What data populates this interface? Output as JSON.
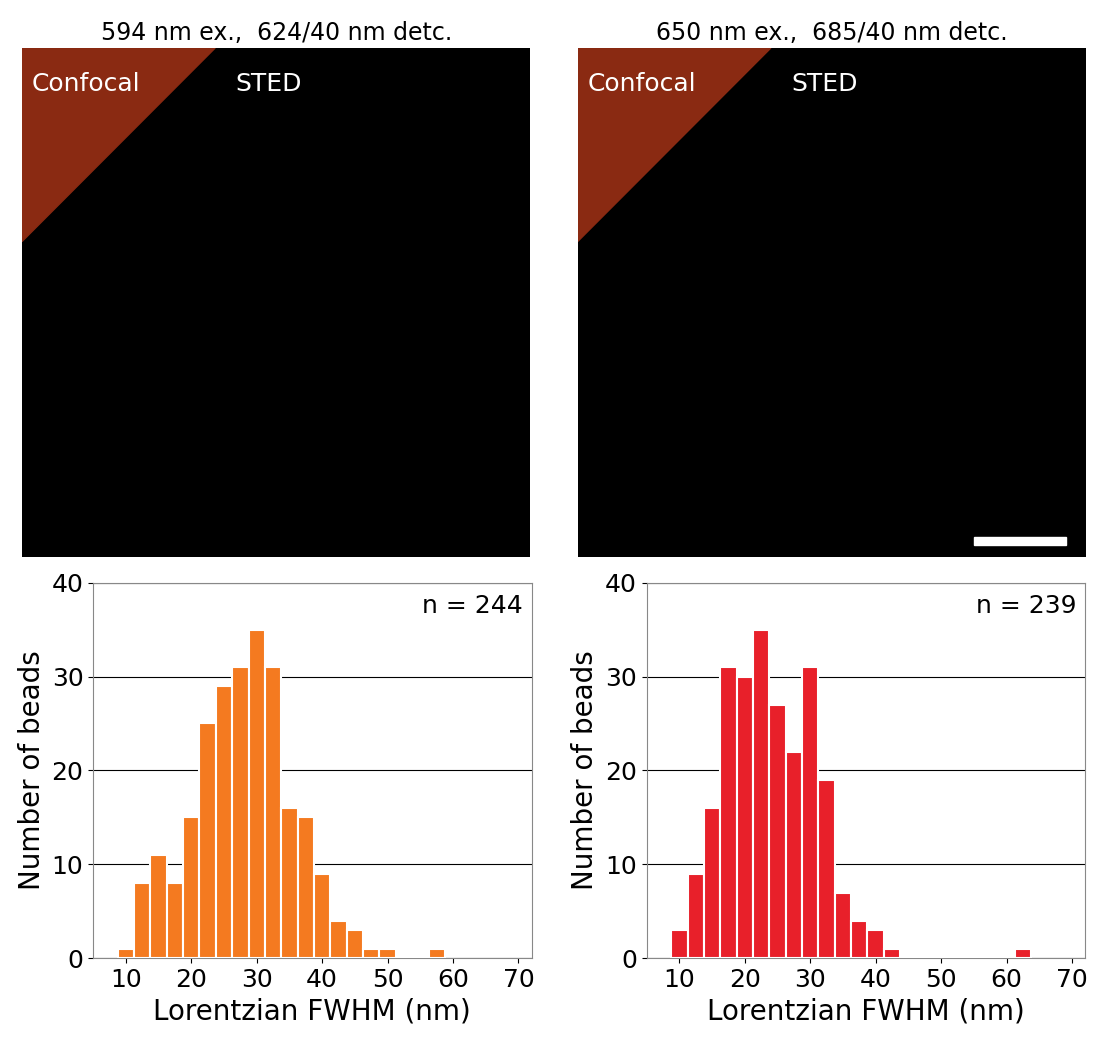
{
  "chart_data": [
    {
      "type": "image",
      "title": "594 nm ex.,  624/40 nm detc.",
      "annotations": [
        "Confocal",
        "STED"
      ]
    },
    {
      "type": "image",
      "title": "650 nm ex.,  685/40 nm detc.",
      "annotations": [
        "Confocal",
        "STED"
      ]
    },
    {
      "type": "histogram",
      "color": "#f47a20",
      "bins": [
        8.75,
        11.25,
        13.75,
        16.25,
        18.75,
        21.25,
        23.75,
        26.25,
        28.75,
        31.25,
        33.75,
        36.25,
        38.75,
        41.25,
        43.75,
        46.25,
        48.75,
        51.25,
        53.75,
        56.25,
        58.75
      ],
      "counts": [
        1,
        8,
        11,
        8,
        15,
        25,
        29,
        31,
        35,
        31,
        16,
        15,
        9,
        4,
        3,
        1,
        1,
        0,
        0,
        1
      ],
      "xlabel": "Lorentzian FWHM (nm)",
      "ylabel": "Number of beads",
      "annotations": [
        "n = 244"
      ],
      "xlim": [
        5,
        72
      ],
      "ylim": [
        0,
        40
      ],
      "xticks": [
        10,
        20,
        30,
        40,
        50,
        60,
        70
      ],
      "yticks": [
        0,
        10,
        20,
        30,
        40
      ],
      "grid": true
    },
    {
      "type": "histogram",
      "color": "#e8202a",
      "bins": [
        8.75,
        11.25,
        13.75,
        16.25,
        18.75,
        21.25,
        23.75,
        26.25,
        28.75,
        31.25,
        33.75,
        36.25,
        38.75,
        41.25,
        43.75,
        46.25,
        48.75,
        51.25,
        53.75,
        56.25,
        58.75,
        61.25,
        63.75
      ],
      "counts": [
        3,
        9,
        16,
        31,
        30,
        35,
        27,
        22,
        31,
        19,
        7,
        4,
        3,
        1,
        0,
        0,
        0,
        0,
        0,
        0,
        0,
        1
      ],
      "xlabel": "Lorentzian FWHM (nm)",
      "ylabel": "Number of beads",
      "annotations": [
        "n = 239"
      ],
      "xlim": [
        5,
        72
      ],
      "ylim": [
        0,
        40
      ],
      "xticks": [
        10,
        20,
        30,
        40,
        50,
        60,
        70
      ],
      "yticks": [
        0,
        10,
        20,
        30,
        40
      ],
      "grid": true
    }
  ]
}
